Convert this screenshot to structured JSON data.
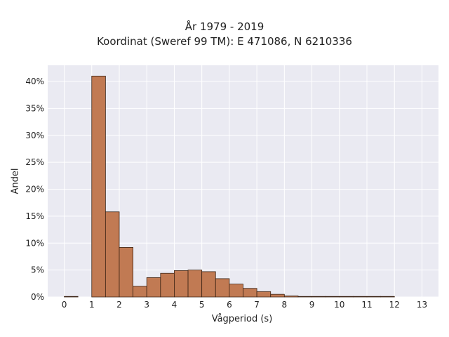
{
  "chart_data": {
    "type": "bar",
    "title": [
      "År 1979 - 2019",
      "Koordinat (Sweref 99 TM): E 471086, N 6210336"
    ],
    "xlabel": "Vågperiod (s)",
    "ylabel": "Andel",
    "xlim": [
      -0.6,
      13.6
    ],
    "ylim": [
      0,
      0.43
    ],
    "xticks": [
      0,
      1,
      2,
      3,
      4,
      5,
      6,
      7,
      8,
      9,
      10,
      11,
      12,
      13
    ],
    "yticks": [
      0,
      0.05,
      0.1,
      0.15,
      0.2,
      0.25,
      0.3,
      0.35,
      0.4
    ],
    "ytick_labels": [
      "0%",
      "5%",
      "10%",
      "15%",
      "20%",
      "25%",
      "30%",
      "35%",
      "40%"
    ],
    "bin_width": 0.5,
    "bins": [
      {
        "x0": 0.0,
        "value": 0.001
      },
      {
        "x0": 1.0,
        "value": 0.41
      },
      {
        "x0": 1.5,
        "value": 0.158
      },
      {
        "x0": 2.0,
        "value": 0.092
      },
      {
        "x0": 2.5,
        "value": 0.02
      },
      {
        "x0": 3.0,
        "value": 0.036
      },
      {
        "x0": 3.5,
        "value": 0.044
      },
      {
        "x0": 4.0,
        "value": 0.049
      },
      {
        "x0": 4.5,
        "value": 0.05
      },
      {
        "x0": 5.0,
        "value": 0.047
      },
      {
        "x0": 5.5,
        "value": 0.034
      },
      {
        "x0": 6.0,
        "value": 0.024
      },
      {
        "x0": 6.5,
        "value": 0.016
      },
      {
        "x0": 7.0,
        "value": 0.01
      },
      {
        "x0": 7.5,
        "value": 0.005
      },
      {
        "x0": 8.0,
        "value": 0.002
      },
      {
        "x0": 8.5,
        "value": 0.001
      },
      {
        "x0": 9.0,
        "value": 0.001
      },
      {
        "x0": 9.5,
        "value": 0.001
      },
      {
        "x0": 10.0,
        "value": 0.001
      },
      {
        "x0": 10.5,
        "value": 0.001
      },
      {
        "x0": 11.0,
        "value": 0.001
      },
      {
        "x0": 11.5,
        "value": 0.001
      }
    ],
    "grid": true,
    "colors": {
      "bar_fill": "#c17a53",
      "bar_edge": "#3b2314",
      "plot_background": "#eaeaf2",
      "grid": "#ffffff",
      "text": "#222222"
    }
  }
}
